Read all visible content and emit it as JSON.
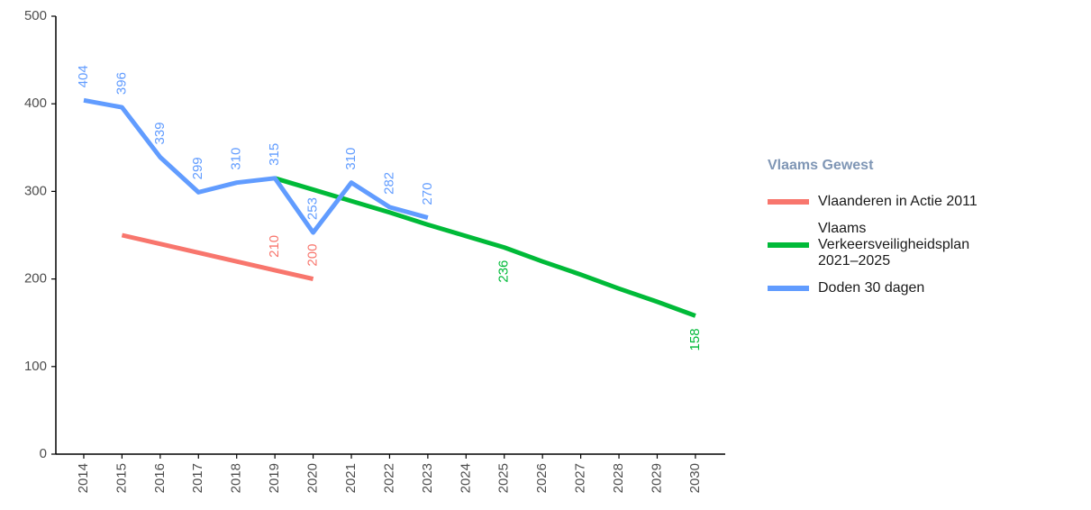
{
  "chart_data": {
    "type": "line",
    "legend_title": "Vlaams Gewest",
    "legend_position": "right",
    "xlim": [
      2013.27,
      2030.78
    ],
    "xticks": [
      2014,
      2015,
      2016,
      2017,
      2018,
      2019,
      2020,
      2021,
      2022,
      2023,
      2024,
      2025,
      2026,
      2027,
      2028,
      2029,
      2030
    ],
    "ylim": [
      0,
      500
    ],
    "yticks": [
      0,
      100,
      200,
      300,
      400,
      500
    ],
    "series": [
      {
        "name": "Vlaanderen in Actie 2011",
        "color": "#f8766d",
        "x": [
          2015,
          2016,
          2017,
          2018,
          2019,
          2020
        ],
        "values": [
          250,
          240,
          230,
          220,
          210,
          200
        ],
        "value_labels": [
          null,
          null,
          null,
          null,
          "210",
          "200"
        ]
      },
      {
        "name": "Vlaams Verkeersveiligheidsplan 2021–2025",
        "color": "#00ba38",
        "x": [
          2019,
          2020,
          2021,
          2022,
          2023,
          2024,
          2025,
          2026,
          2027,
          2028,
          2029,
          2030
        ],
        "values": [
          315,
          302,
          289,
          276,
          262,
          249,
          236,
          220,
          205,
          189,
          174,
          158
        ],
        "value_labels": [
          null,
          null,
          null,
          null,
          null,
          null,
          "236",
          null,
          null,
          null,
          null,
          "158"
        ]
      },
      {
        "name": "Doden 30 dagen",
        "color": "#619cff",
        "x": [
          2014,
          2015,
          2016,
          2017,
          2018,
          2019,
          2020,
          2021,
          2022,
          2023
        ],
        "values": [
          404,
          396,
          339,
          299,
          310,
          315,
          253,
          310,
          282,
          270
        ],
        "value_labels": [
          "404",
          "396",
          "339",
          "299",
          "310",
          "315",
          "253",
          "310",
          "282",
          "270"
        ]
      }
    ]
  }
}
